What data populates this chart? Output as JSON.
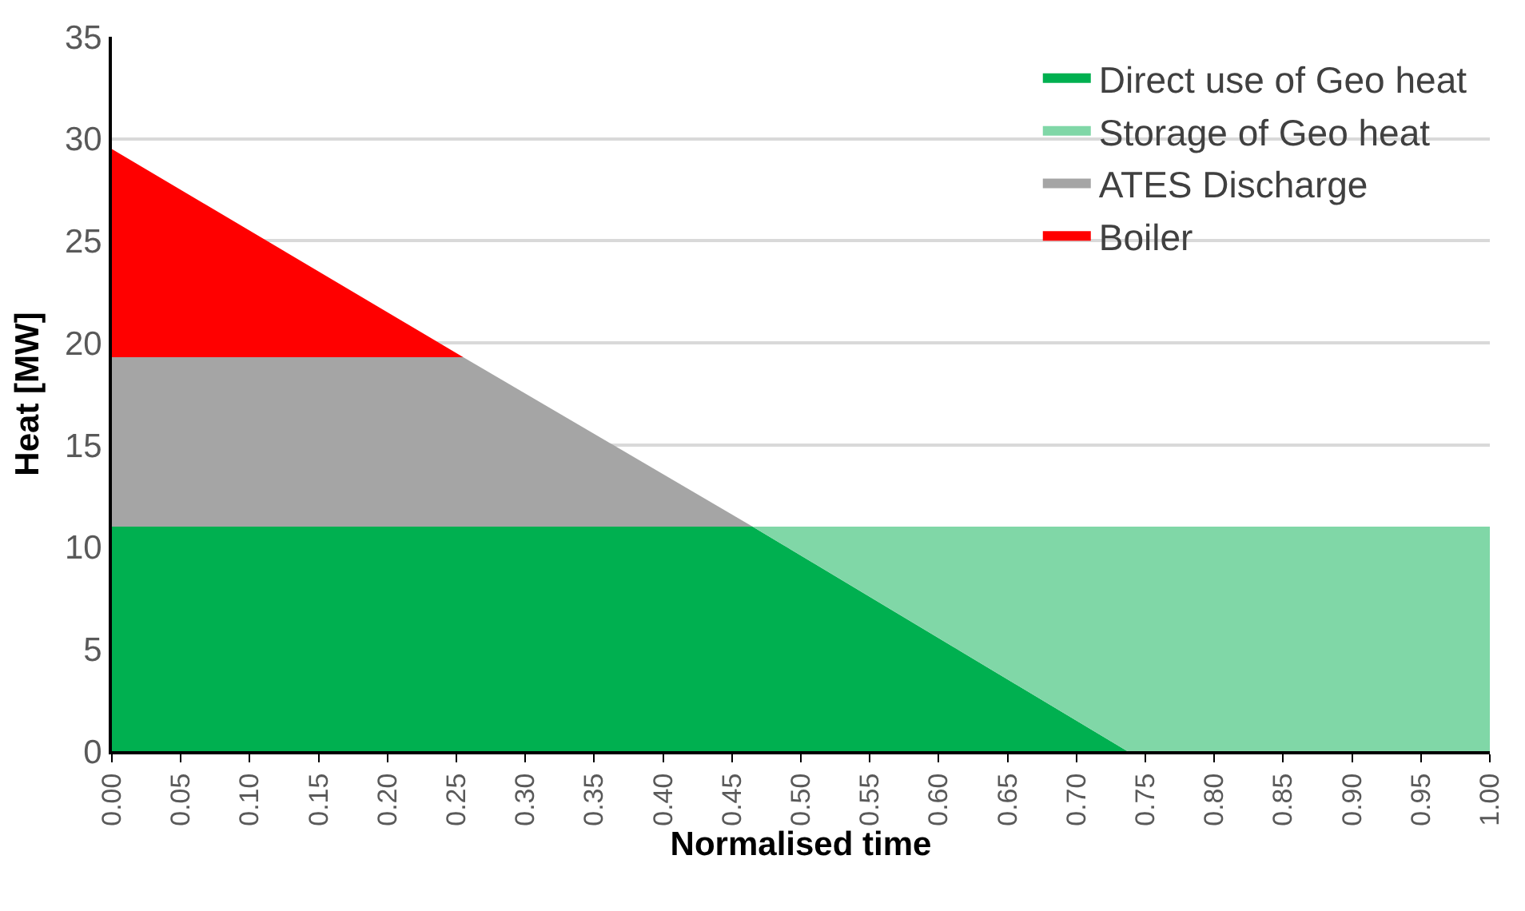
{
  "chart_data": {
    "type": "area",
    "stacked": true,
    "xlabel": "Normalised time",
    "ylabel": "Heat [MW]",
    "x": [
      0,
      0.255,
      0.465,
      0.737,
      1
    ],
    "series": [
      {
        "name": "Direct use of Geo heat",
        "color": "#00b050",
        "values": [
          11,
          11,
          11,
          0,
          null
        ]
      },
      {
        "name": "Storage of Geo heat",
        "color": "#80d7a7",
        "values": [
          null,
          null,
          0,
          11,
          11
        ]
      },
      {
        "name": "ATES Discharge",
        "color": "#a5a5a5",
        "values": [
          8.3,
          8.3,
          0,
          null,
          null
        ]
      },
      {
        "name": "Boiler",
        "color": "#ff0000",
        "values": [
          10.2,
          0,
          null,
          null,
          null
        ]
      }
    ],
    "xlim": [
      0,
      1
    ],
    "xticks": [
      {
        "value": 0,
        "label": "0.00"
      },
      {
        "value": 0.05,
        "label": "0.05"
      },
      {
        "value": 0.1,
        "label": "0.10"
      },
      {
        "value": 0.15,
        "label": "0.15"
      },
      {
        "value": 0.2,
        "label": "0.20"
      },
      {
        "value": 0.25,
        "label": "0.25"
      },
      {
        "value": 0.3,
        "label": "0.30"
      },
      {
        "value": 0.35,
        "label": "0.35"
      },
      {
        "value": 0.4,
        "label": "0.40"
      },
      {
        "value": 0.45,
        "label": "0.45"
      },
      {
        "value": 0.5,
        "label": "0.50"
      },
      {
        "value": 0.55,
        "label": "0.55"
      },
      {
        "value": 0.6,
        "label": "0.60"
      },
      {
        "value": 0.65,
        "label": "0.65"
      },
      {
        "value": 0.7,
        "label": "0.70"
      },
      {
        "value": 0.75,
        "label": "0.75"
      },
      {
        "value": 0.8,
        "label": "0.80"
      },
      {
        "value": 0.85,
        "label": "0.85"
      },
      {
        "value": 0.9,
        "label": "0.90"
      },
      {
        "value": 0.95,
        "label": "0.95"
      },
      {
        "value": 1,
        "label": "1.00"
      }
    ],
    "ylim": [
      0,
      35
    ],
    "yticks": [
      0,
      5,
      10,
      15,
      20,
      25,
      30,
      35
    ],
    "grid": "y",
    "legend": "top right"
  }
}
